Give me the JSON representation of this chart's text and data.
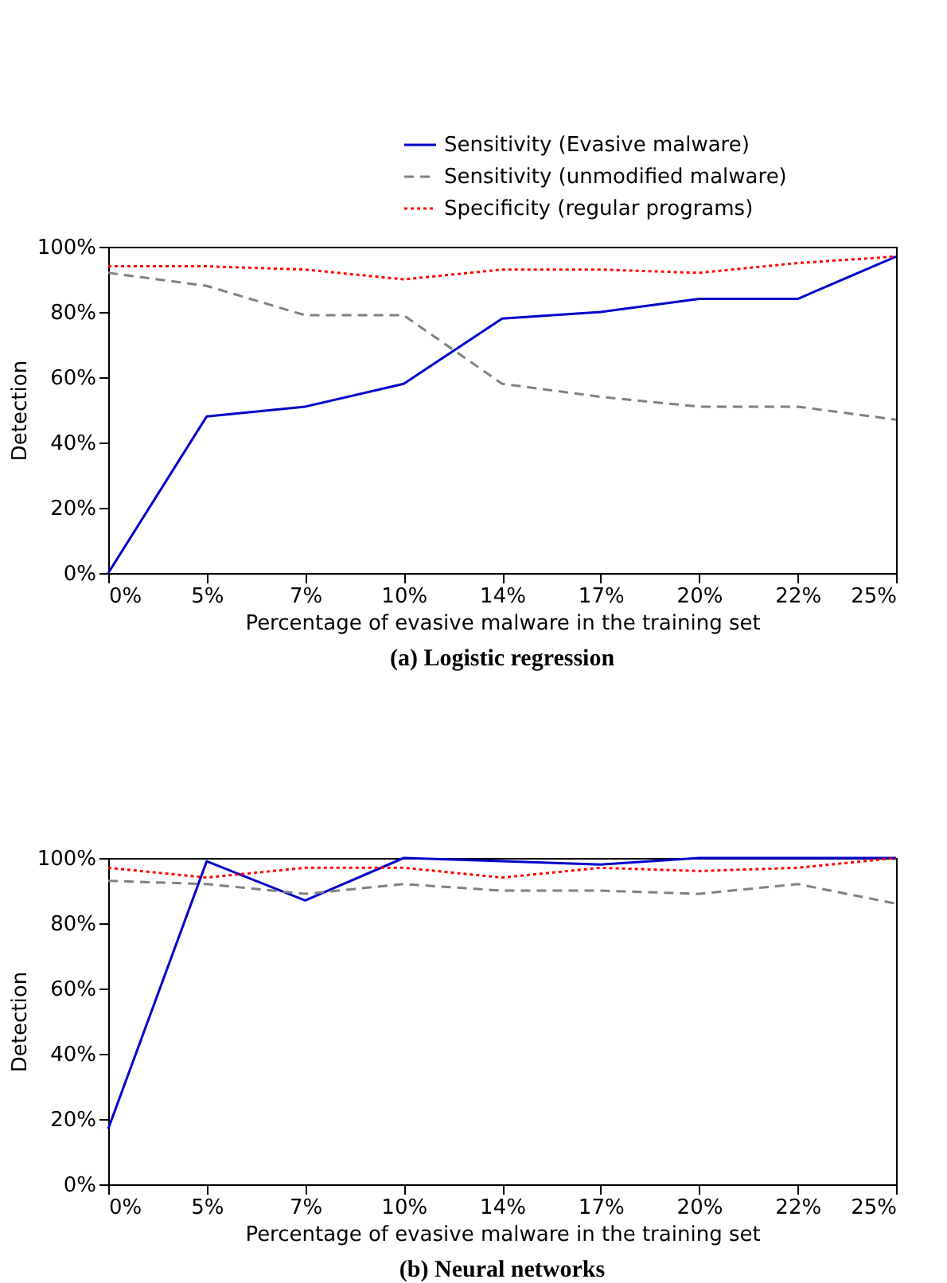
{
  "chart_data": [
    {
      "type": "line",
      "title": "(a) Logistic regression",
      "xlabel": "Percentage of evasive malware in the training set",
      "ylabel": "Detection",
      "categories": [
        "0%",
        "5%",
        "7%",
        "10%",
        "14%",
        "17%",
        "20%",
        "22%",
        "25%"
      ],
      "ylim": [
        0,
        100
      ],
      "yticks": [
        {
          "value": 0,
          "label": "0%"
        },
        {
          "value": 20,
          "label": "20%"
        },
        {
          "value": 40,
          "label": "40%"
        },
        {
          "value": 60,
          "label": "60%"
        },
        {
          "value": 80,
          "label": "80%"
        },
        {
          "value": 100,
          "label": "100%"
        }
      ],
      "grid": false,
      "legend": "top right",
      "series": [
        {
          "name": "Sensitivity (Evasive malware)",
          "color": "#0000cc",
          "line_style": "solid",
          "values": [
            0,
            48,
            51,
            58,
            78,
            80,
            84,
            84,
            97
          ]
        },
        {
          "name": "Sensitivity (unmodified malware)",
          "color": "#808080",
          "line_style": "dashed",
          "values": [
            92,
            88,
            79,
            79,
            58,
            54,
            51,
            51,
            47
          ]
        },
        {
          "name": "Specificity (regular programs)",
          "color": "#ff0000",
          "line_style": "dotted",
          "values": [
            94,
            94,
            93,
            90,
            93,
            93,
            92,
            95,
            97
          ]
        }
      ]
    },
    {
      "type": "line",
      "title": "(b) Neural networks",
      "xlabel": "Percentage of evasive malware in the training set",
      "ylabel": "Detection",
      "categories": [
        "0%",
        "5%",
        "7%",
        "10%",
        "14%",
        "17%",
        "20%",
        "22%",
        "25%"
      ],
      "ylim": [
        0,
        100
      ],
      "yticks": [
        {
          "value": 0,
          "label": "0%"
        },
        {
          "value": 20,
          "label": "20%"
        },
        {
          "value": 40,
          "label": "40%"
        },
        {
          "value": 60,
          "label": "60%"
        },
        {
          "value": 80,
          "label": "80%"
        },
        {
          "value": 100,
          "label": "100%"
        }
      ],
      "grid": false,
      "legend": "top right",
      "series": [
        {
          "name": "Sensitivity (Evasive malware)",
          "color": "#0000cc",
          "line_style": "solid",
          "values": [
            17,
            99,
            87,
            100,
            99,
            98,
            100,
            100,
            100
          ]
        },
        {
          "name": "Sensitivity (unmodified malware)",
          "color": "#808080",
          "line_style": "dashed",
          "values": [
            93,
            92,
            89,
            92,
            90,
            90,
            89,
            92,
            86
          ]
        },
        {
          "name": "Specificity (regular programs)",
          "color": "#ff0000",
          "line_style": "dotted",
          "values": [
            97,
            94,
            97,
            97,
            94,
            97,
            96,
            97,
            100
          ]
        }
      ]
    }
  ]
}
